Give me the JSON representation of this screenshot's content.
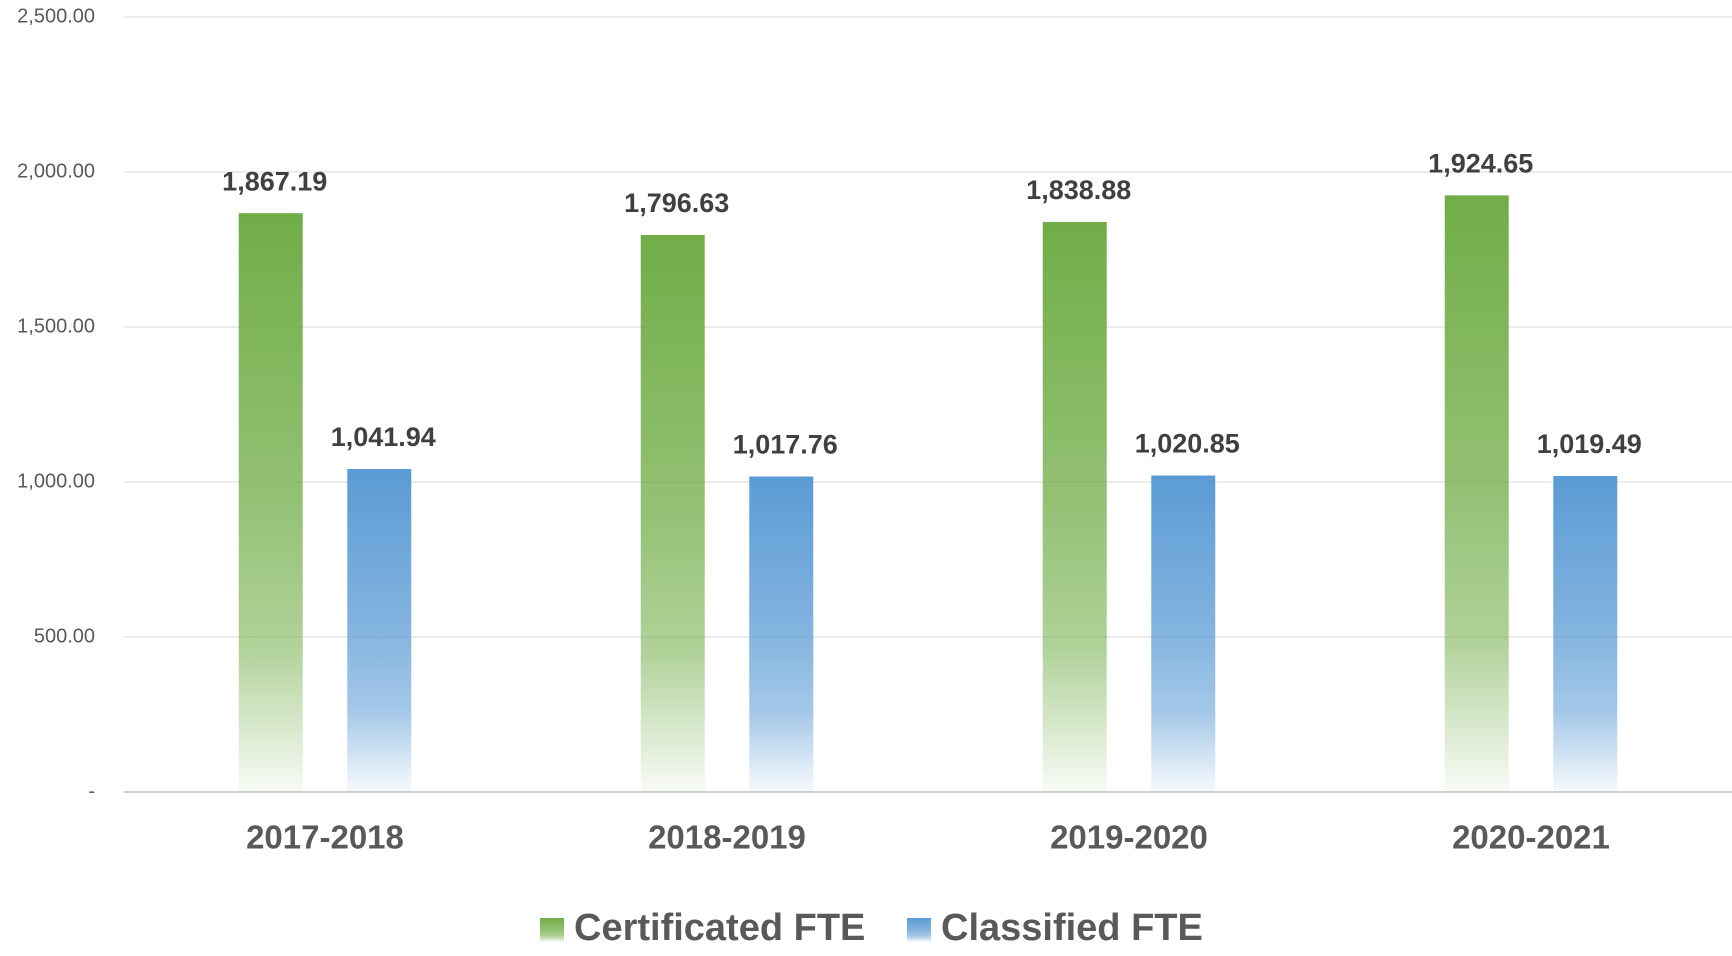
{
  "chart_data": {
    "type": "bar",
    "categories": [
      "2017-2018",
      "2018-2019",
      "2019-2020",
      "2020-2021"
    ],
    "series": [
      {
        "name": "Certificated FTE",
        "color": "#70ad47",
        "values": [
          1867.19,
          1796.63,
          1838.88,
          1924.65
        ],
        "value_labels": [
          "1,867.19",
          "1,796.63",
          "1,838.88",
          "1,924.65"
        ]
      },
      {
        "name": "Classified FTE",
        "color": "#5b9bd5",
        "values": [
          1041.94,
          1017.76,
          1020.85,
          1019.49
        ],
        "value_labels": [
          "1,041.94",
          "1,017.76",
          "1,020.85",
          "1,019.49"
        ]
      }
    ],
    "ylim": [
      0,
      2500
    ],
    "yticks": [
      {
        "value": 0,
        "label": "-"
      },
      {
        "value": 500,
        "label": "500.00"
      },
      {
        "value": 1000,
        "label": "1,000.00"
      },
      {
        "value": 1500,
        "label": "1,500.00"
      },
      {
        "value": 2000,
        "label": "2,000.00"
      },
      {
        "value": 2500,
        "label": "2,500.00"
      }
    ],
    "grid": true,
    "legend": "bottom"
  }
}
